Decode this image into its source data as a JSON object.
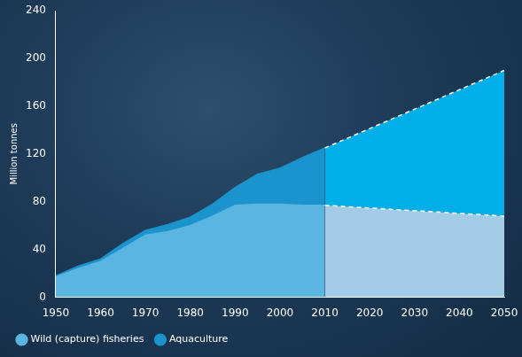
{
  "chart_data": {
    "type": "area",
    "stacked": true,
    "y_label": "Million tonnes",
    "projected_from": 2010,
    "x": [
      1950,
      1955,
      1960,
      1965,
      1970,
      1975,
      1980,
      1985,
      1990,
      1995,
      2000,
      2005,
      2010,
      2050
    ],
    "series": [
      {
        "name": "Wild (capture) fisheries",
        "color": "#5ab6e0",
        "values": [
          17,
          24,
          30,
          41,
          52,
          55,
          60,
          68,
          77,
          78,
          78,
          77,
          77,
          68
        ]
      },
      {
        "name": "Aquaculture",
        "color": "#1b93cc",
        "values": [
          1,
          2,
          2,
          4,
          4,
          6,
          7,
          10,
          15,
          25,
          30,
          40,
          48,
          122
        ]
      }
    ],
    "xlim": [
      1950,
      2050
    ],
    "xticks": [
      1950,
      1960,
      1970,
      1980,
      1990,
      2000,
      2010,
      2020,
      2030,
      2040,
      2050
    ],
    "ylim": [
      0,
      240
    ],
    "yticks": [
      0,
      40,
      80,
      120,
      160,
      200,
      240
    ],
    "grid": false,
    "legend": "bottom-left"
  }
}
